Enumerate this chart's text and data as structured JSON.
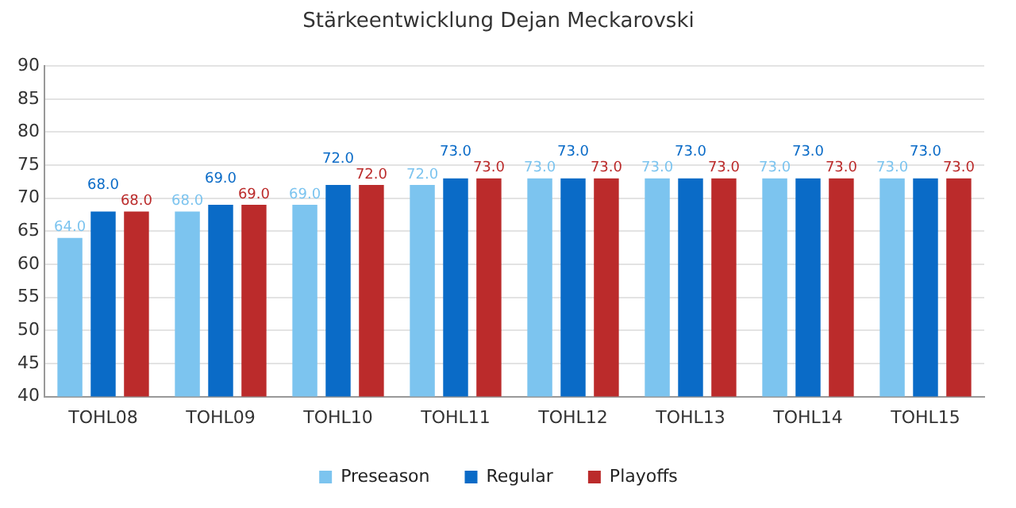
{
  "chart_data": {
    "type": "bar",
    "title": "Stärkeentwicklung Dejan Meckarovski",
    "categories": [
      "TOHL08",
      "TOHL09",
      "TOHL10",
      "TOHL11",
      "TOHL12",
      "TOHL13",
      "TOHL14",
      "TOHL15"
    ],
    "series": [
      {
        "name": "Preseason",
        "color": "#7cc4ef",
        "values": [
          64,
          68,
          69,
          72,
          73,
          73,
          73,
          73
        ],
        "value_labels": [
          "64.0",
          "68.0",
          "69.0",
          "72.0",
          "73.0",
          "73.0",
          "73.0",
          "73.0"
        ]
      },
      {
        "name": "Regular",
        "color": "#0a6bc7",
        "values": [
          68,
          69,
          72,
          73,
          73,
          73,
          73,
          73
        ],
        "value_labels": [
          "68.0",
          "69.0",
          "72.0",
          "73.0",
          "73.0",
          "73.0",
          "73.0",
          "73.0"
        ]
      },
      {
        "name": "Playoffs",
        "color": "#bb2b2b",
        "values": [
          68,
          69,
          72,
          73,
          73,
          73,
          73,
          73
        ],
        "value_labels": [
          "68.0",
          "69.0",
          "72.0",
          "73.0",
          "73.0",
          "73.0",
          "73.0",
          "73.0"
        ]
      }
    ],
    "ylim": [
      40,
      90
    ],
    "yticks": [
      40,
      45,
      50,
      55,
      60,
      65,
      70,
      75,
      80,
      85,
      90
    ],
    "grid": "y",
    "legend": "bottom"
  }
}
